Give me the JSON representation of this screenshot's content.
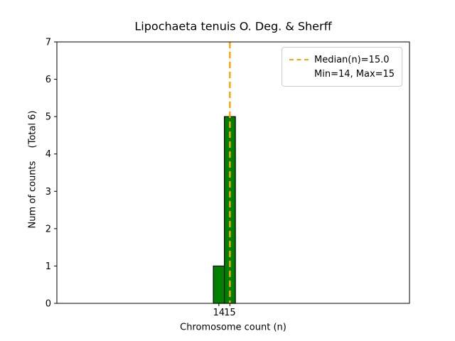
{
  "chart_data": {
    "type": "bar",
    "title": "Lipochaeta tenuis O. Deg. & Sherff",
    "xlabel": "Chromosome count (n)",
    "ylabel": "Num of counts",
    "ylabel_secondary": "(Total 6)",
    "categories": [
      14,
      15
    ],
    "values": [
      1,
      5
    ],
    "bar_width": 1,
    "bar_color": "#008000",
    "bar_edge_color": "#000000",
    "xlim": [
      -0.7,
      31.3
    ],
    "ylim": [
      0,
      7
    ],
    "yticks": [
      0,
      1,
      2,
      3,
      4,
      5,
      6,
      7
    ],
    "xticks": [
      14,
      15
    ],
    "grid": false,
    "median_line": {
      "x": 15.0,
      "color": "#FFA500",
      "style": "dashed"
    },
    "legend": {
      "position": "upper right",
      "entries": [
        {
          "label": "Median(n)=15.0",
          "swatch": "dashed-line",
          "color": "#FFA500"
        },
        {
          "label": "Min=14, Max=15",
          "swatch": "none"
        }
      ]
    },
    "stats": {
      "median": 15.0,
      "min": 14,
      "max": 15,
      "total": 6
    }
  }
}
